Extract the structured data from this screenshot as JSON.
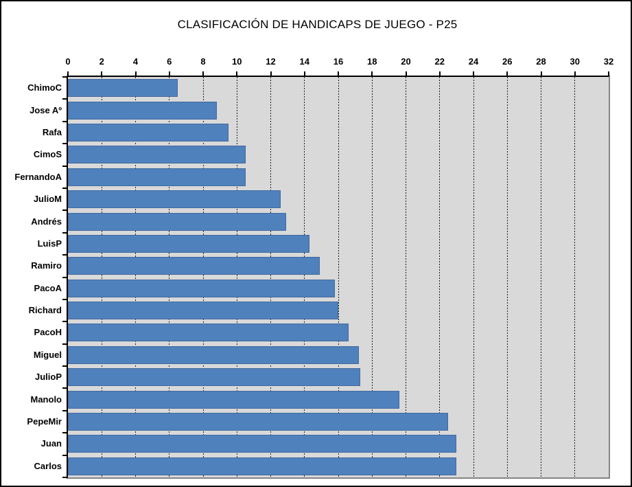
{
  "title": "CLASIFICACIÓN DE HANDICAPS DE JUEGO - P25",
  "chart_data": {
    "type": "bar",
    "orientation": "horizontal",
    "title": "CLASIFICACIÓN DE HANDICAPS DE JUEGO - P25",
    "xlabel": "",
    "ylabel": "",
    "xlim": [
      0,
      32
    ],
    "xticks": [
      0,
      2,
      4,
      6,
      8,
      10,
      12,
      14,
      16,
      18,
      20,
      22,
      24,
      26,
      28,
      30,
      32
    ],
    "grid": "vertical-dashed",
    "legend": "none",
    "categories": [
      "ChimoC",
      "Jose Aº",
      "Rafa",
      "CimoS",
      "FernandoA",
      "JulioM",
      "Andrés",
      "LuisP",
      "Ramiro",
      "PacoA",
      "Richard",
      "PacoH",
      "Miguel",
      "JulioP",
      "Manolo",
      "PepeMir",
      "Juan",
      "Carlos"
    ],
    "values": [
      6.5,
      8.8,
      9.5,
      10.5,
      10.5,
      12.6,
      12.9,
      14.3,
      14.9,
      15.8,
      16.0,
      16.6,
      17.2,
      17.3,
      19.6,
      22.5,
      23.0,
      23.0
    ]
  },
  "colors": {
    "bar": "#4f81bd",
    "bar_border": "#41699f",
    "plot_background": "#d9d9d9",
    "gridline": "#1a1a1a",
    "axis": "#000000",
    "plot_border": "#848484",
    "frame_border": "#000000",
    "page_background": "#ffffff"
  }
}
